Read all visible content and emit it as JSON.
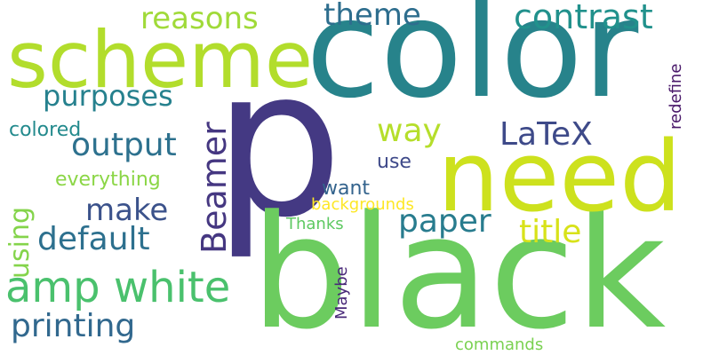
{
  "words": [
    {
      "text": "color",
      "color": "#27838b"
    },
    {
      "text": "p",
      "color": "#443983"
    },
    {
      "text": "black",
      "color": "#6ccc5f"
    },
    {
      "text": "need",
      "color": "#cde11d"
    },
    {
      "text": "scheme",
      "color": "#b2dd2c"
    },
    {
      "text": "amp white",
      "color": "#4ac16d"
    },
    {
      "text": "Beamer",
      "color": "#453781"
    },
    {
      "text": "contrast",
      "color": "#21918c"
    },
    {
      "text": "reasons",
      "color": "#a0da39"
    },
    {
      "text": "theme",
      "color": "#2e6e8e"
    },
    {
      "text": "purposes",
      "color": "#26818e"
    },
    {
      "text": "output",
      "color": "#2d718e"
    },
    {
      "text": "LaTeX",
      "color": "#3e4a89"
    },
    {
      "text": "way",
      "color": "#b5de2b"
    },
    {
      "text": "paper",
      "color": "#287c8e"
    },
    {
      "text": "title",
      "color": "#d8e219"
    },
    {
      "text": "default",
      "color": "#2d708e"
    },
    {
      "text": "make",
      "color": "#3b528b"
    },
    {
      "text": "printing",
      "color": "#31688e"
    },
    {
      "text": "using",
      "color": "#84d44b"
    },
    {
      "text": "colored",
      "color": "#238a8d"
    },
    {
      "text": "everything",
      "color": "#8bd646"
    },
    {
      "text": "use",
      "color": "#3e4989"
    },
    {
      "text": "want",
      "color": "#33638d"
    },
    {
      "text": "backgrounds",
      "color": "#fde725"
    },
    {
      "text": "Thanks",
      "color": "#5ec962"
    },
    {
      "text": "redefine",
      "color": "#481769"
    },
    {
      "text": "Maybe",
      "color": "#482878"
    },
    {
      "text": "commands",
      "color": "#7ad151"
    }
  ]
}
